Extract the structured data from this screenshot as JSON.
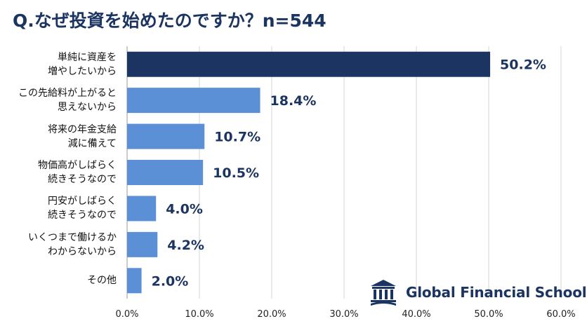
{
  "title": "Q.なぜ投資を始めたのですか？n=544",
  "chart_data": {
    "type": "bar",
    "orientation": "horizontal",
    "categories": [
      "単純に資産を\n増やしたいから",
      "この先給料が上がると\n思えないから",
      "将来の年金支給\n減に備えて",
      "物価高がしばらく\n続きそうなので",
      "円安がしばらく\n続きそうなので",
      "いくつまで働けるか\nわからないから",
      "その他"
    ],
    "values": [
      50.2,
      18.4,
      10.7,
      10.5,
      4.0,
      4.2,
      2.0
    ],
    "value_labels": [
      "50.2%",
      "18.4%",
      "10.7%",
      "10.5%",
      "4.0%",
      "4.2%",
      "2.0%"
    ],
    "xlim": [
      0,
      60
    ],
    "x_ticks": [
      "0.0%",
      "10.0%",
      "20.0%",
      "30.0%",
      "40.0%",
      "50.0%",
      "60.0%"
    ],
    "grid": "vertical",
    "colors": {
      "highlight": "#1b3461",
      "bar": "#5b8fd6"
    }
  },
  "logo": {
    "text": "Global Financial School",
    "icon": "school-building-icon"
  }
}
